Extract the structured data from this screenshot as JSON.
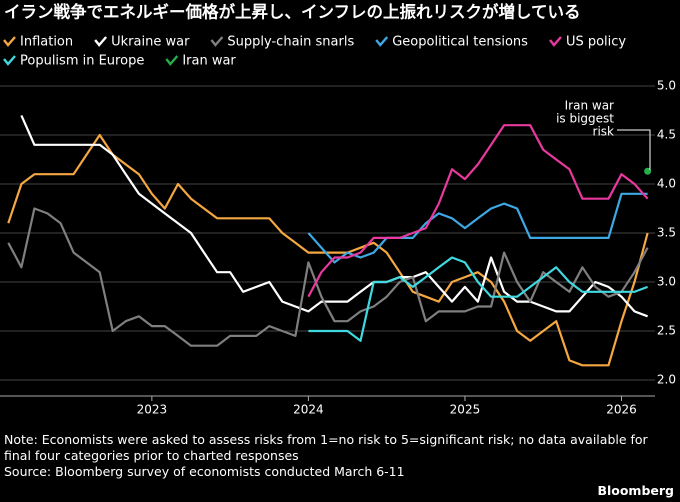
{
  "chart_data": {
    "type": "line",
    "title": "イラン戦争でエネルギー価格が上昇し、インフレの上振れリスクが増している",
    "note": "Note: Economists were asked to assess risks from 1=no risk to 5=significant risk; no data available for final four categories prior to charted responses",
    "source": "Source: Bloomberg survey of economists conducted March 6-11",
    "brand": "Bloomberg",
    "annotation": [
      "Iran war",
      "is biggest",
      "risk"
    ],
    "grid": true,
    "xlim": [
      2022.03,
      2026.214
    ],
    "xticks": [
      2023,
      2024,
      2025,
      2026
    ],
    "ylim": [
      2.0,
      5.0
    ],
    "yticks": [
      {
        "value": 2.0,
        "label": "2.0"
      },
      2.5,
      {
        "value": 3.0,
        "label": "3.0"
      },
      3.5,
      {
        "value": 4.0,
        "label": "4.0"
      },
      4.5,
      {
        "value": 5.0,
        "label": "5.0"
      }
    ],
    "x": [
      2022.083,
      2022.167,
      2022.25,
      2022.333,
      2022.417,
      2022.5,
      2022.583,
      2022.667,
      2022.75,
      2022.833,
      2022.917,
      2023.0,
      2023.083,
      2023.167,
      2023.25,
      2023.333,
      2023.417,
      2023.5,
      2023.583,
      2023.667,
      2023.75,
      2023.833,
      2023.917,
      2024.0,
      2024.083,
      2024.167,
      2024.25,
      2024.333,
      2024.417,
      2024.5,
      2024.583,
      2024.667,
      2024.75,
      2024.833,
      2024.917,
      2025.0,
      2025.083,
      2025.167,
      2025.25,
      2025.333,
      2025.417,
      2025.5,
      2025.583,
      2025.667,
      2025.75,
      2025.833,
      2025.917,
      2026.0,
      2026.083,
      2026.167
    ],
    "series": [
      {
        "name": "Inflation",
        "color": "#f5a742",
        "values": [
          3.6,
          4.0,
          4.1,
          4.1,
          4.1,
          4.1,
          4.3,
          4.5,
          4.3,
          4.2,
          4.1,
          3.9,
          3.75,
          4.0,
          3.85,
          3.75,
          3.65,
          3.65,
          3.65,
          3.65,
          3.65,
          3.5,
          3.4,
          3.3,
          3.3,
          3.3,
          3.3,
          3.35,
          3.4,
          3.3,
          3.1,
          2.9,
          2.85,
          2.8,
          3.0,
          3.05,
          3.1,
          3.0,
          2.8,
          2.5,
          2.4,
          2.5,
          2.6,
          2.2,
          2.15,
          2.15,
          2.15,
          2.6,
          3.0,
          3.5
        ]
      },
      {
        "name": "Ukraine war",
        "color": "#ffffff",
        "values": [
          null,
          4.7,
          4.4,
          4.4,
          4.4,
          4.4,
          4.4,
          4.4,
          4.3,
          4.1,
          3.9,
          3.8,
          3.7,
          3.6,
          3.5,
          3.3,
          3.1,
          3.1,
          2.9,
          2.95,
          3.0,
          2.8,
          2.75,
          2.7,
          2.8,
          2.8,
          2.8,
          2.9,
          3.0,
          3.0,
          3.05,
          3.05,
          3.1,
          2.95,
          2.8,
          2.95,
          2.8,
          3.25,
          2.9,
          2.8,
          2.8,
          2.75,
          2.7,
          2.7,
          2.85,
          3.0,
          2.95,
          2.85,
          2.7,
          2.65
        ]
      },
      {
        "name": "Supply-chain snarls",
        "color": "#7f7f7f",
        "values": [
          3.4,
          3.15,
          3.75,
          3.7,
          3.6,
          3.3,
          3.2,
          3.1,
          2.5,
          2.6,
          2.65,
          2.55,
          2.55,
          2.45,
          2.35,
          2.35,
          2.35,
          2.45,
          2.45,
          2.45,
          2.55,
          2.5,
          2.45,
          3.2,
          2.85,
          2.6,
          2.6,
          2.7,
          2.75,
          2.85,
          3.0,
          3.05,
          2.6,
          2.7,
          2.7,
          2.7,
          2.75,
          2.75,
          3.3,
          3.0,
          2.8,
          3.1,
          3.0,
          2.9,
          3.15,
          2.95,
          2.85,
          2.9,
          3.1,
          3.35
        ]
      },
      {
        "name": "Geopolitical tensions",
        "color": "#3ea8e5",
        "values": [
          null,
          null,
          null,
          null,
          null,
          null,
          null,
          null,
          null,
          null,
          null,
          null,
          null,
          null,
          null,
          null,
          null,
          null,
          null,
          null,
          null,
          null,
          null,
          3.5,
          3.35,
          3.2,
          3.3,
          3.25,
          3.3,
          3.45,
          3.45,
          3.45,
          3.6,
          3.7,
          3.65,
          3.55,
          3.65,
          3.75,
          3.8,
          3.75,
          3.45,
          3.45,
          3.45,
          3.45,
          3.45,
          3.45,
          3.45,
          3.9,
          3.9,
          3.9
        ]
      },
      {
        "name": "US policy",
        "color": "#e8399e",
        "values": [
          null,
          null,
          null,
          null,
          null,
          null,
          null,
          null,
          null,
          null,
          null,
          null,
          null,
          null,
          null,
          null,
          null,
          null,
          null,
          null,
          null,
          null,
          null,
          2.85,
          3.1,
          3.25,
          3.25,
          3.3,
          3.45,
          3.45,
          3.45,
          3.5,
          3.55,
          3.8,
          4.15,
          4.05,
          4.2,
          4.4,
          4.6,
          4.6,
          4.6,
          4.35,
          4.25,
          4.15,
          3.85,
          3.85,
          3.85,
          4.1,
          4.0,
          3.85
        ]
      },
      {
        "name": "Populism in Europe",
        "color": "#3fd9df",
        "values": [
          null,
          null,
          null,
          null,
          null,
          null,
          null,
          null,
          null,
          null,
          null,
          null,
          null,
          null,
          null,
          null,
          null,
          null,
          null,
          null,
          null,
          null,
          null,
          2.5,
          2.5,
          2.5,
          2.5,
          2.4,
          3.0,
          3.0,
          3.05,
          2.95,
          3.05,
          3.15,
          3.25,
          3.2,
          3.0,
          2.85,
          2.85,
          2.85,
          2.95,
          3.05,
          3.15,
          3.0,
          2.9,
          2.9,
          2.9,
          2.9,
          2.9,
          2.95
        ]
      },
      {
        "name": "Iran war",
        "color": "#22b14c",
        "values": [
          null,
          null,
          null,
          null,
          null,
          null,
          null,
          null,
          null,
          null,
          null,
          null,
          null,
          null,
          null,
          null,
          null,
          null,
          null,
          null,
          null,
          null,
          null,
          null,
          null,
          null,
          null,
          null,
          null,
          null,
          null,
          null,
          null,
          null,
          null,
          null,
          null,
          null,
          null,
          null,
          null,
          null,
          null,
          null,
          null,
          null,
          null,
          null,
          null,
          4.13
        ]
      }
    ]
  }
}
